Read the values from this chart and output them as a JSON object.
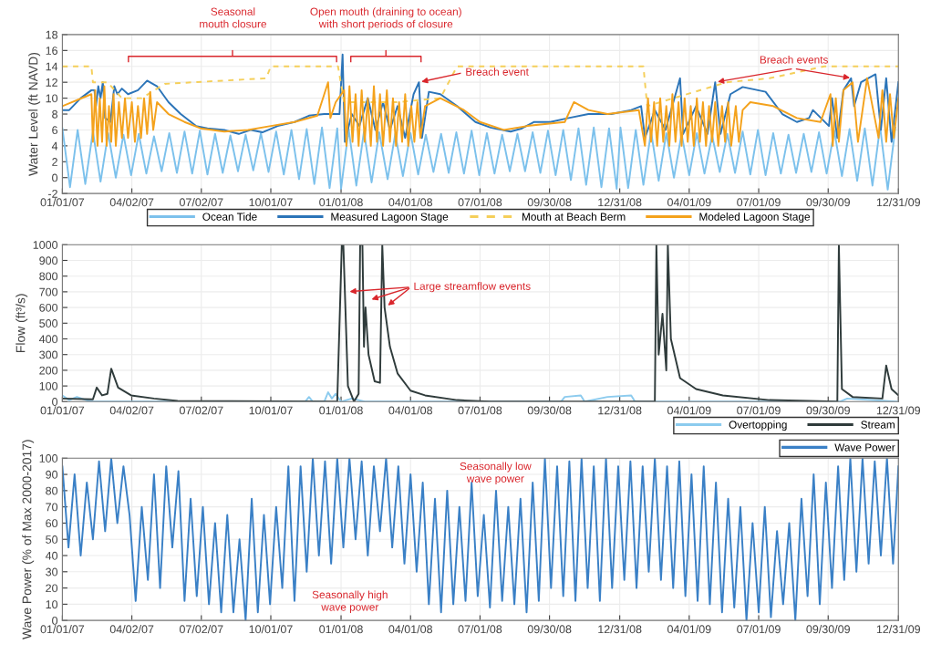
{
  "chart_data": [
    {
      "type": "line",
      "ylabel": "Water Level (ft NAVD)",
      "xlim": [
        "2007-01-01",
        "2009-12-31"
      ],
      "ylim": [
        -2,
        18
      ],
      "yticks": [
        -2,
        0,
        2,
        4,
        6,
        8,
        10,
        12,
        14,
        16,
        18
      ],
      "xticks": [
        {
          "value": "2007-01-01",
          "label": "01/01/07"
        },
        {
          "value": "2007-04-02",
          "label": "04/02/07"
        },
        {
          "value": "2007-07-02",
          "label": "07/02/07"
        },
        {
          "value": "2007-10-01",
          "label": "10/01/07"
        },
        {
          "value": "2008-01-01",
          "label": "01/01/08"
        },
        {
          "value": "2008-04-01",
          "label": "04/01/08"
        },
        {
          "value": "2008-07-01",
          "label": "07/01/08"
        },
        {
          "value": "2008-09-30",
          "label": "09/30/08"
        },
        {
          "value": "2008-12-31",
          "label": "12/31/08"
        },
        {
          "value": "2009-04-01",
          "label": "04/01/09"
        },
        {
          "value": "2009-07-01",
          "label": "07/01/09"
        },
        {
          "value": "2009-09-30",
          "label": "09/30/09"
        },
        {
          "value": "2009-12-31",
          "label": "12/31/09"
        }
      ],
      "grid": true,
      "legend": "bottom",
      "annotations": [
        "Seasonal\nmouth closure",
        "Open mouth (draining to ocean)\nwith short periods of closure",
        {
          "text": "Breach event",
          "x": "2008-04-12",
          "y": 12
        },
        {
          "text": "Breach events",
          "x": "2009-05-05",
          "y": 12
        }
      ],
      "series": [
        {
          "name": "Ocean Tide",
          "color": "#7cc1ec",
          "x": [
            "2007-01-01",
            "2007-01-11",
            "2007-01-21",
            "2007-01-31",
            "2007-02-10",
            "2007-02-20",
            "2007-03-02",
            "2007-03-12",
            "2007-03-22",
            "2007-04-01",
            "2007-04-11",
            "2007-04-21",
            "2007-05-01",
            "2007-05-11",
            "2007-05-21",
            "2007-05-31",
            "2007-06-10",
            "2007-06-20",
            "2007-06-30",
            "2007-07-10",
            "2007-07-20",
            "2007-07-30",
            "2007-08-09",
            "2007-08-19",
            "2007-08-29",
            "2007-09-08",
            "2007-09-18",
            "2007-09-28",
            "2007-10-08",
            "2007-10-18",
            "2007-10-28",
            "2007-11-07",
            "2007-11-17",
            "2007-11-27",
            "2007-12-07",
            "2007-12-17",
            "2007-12-27",
            "2008-01-01",
            "2008-01-11",
            "2008-01-21",
            "2008-01-31",
            "2008-02-10",
            "2008-02-20",
            "2008-03-02",
            "2008-03-12",
            "2008-03-22",
            "2008-04-01",
            "2008-04-11",
            "2008-04-21",
            "2008-05-01",
            "2008-05-11",
            "2008-05-21",
            "2008-05-31",
            "2008-06-10",
            "2008-06-20",
            "2008-06-30",
            "2008-07-10",
            "2008-07-20",
            "2008-07-30",
            "2008-08-09",
            "2008-08-19",
            "2008-08-29",
            "2008-09-08",
            "2008-09-18",
            "2008-09-28",
            "2008-10-08",
            "2008-10-18",
            "2008-10-28",
            "2008-11-07",
            "2008-11-17",
            "2008-11-27",
            "2008-12-07",
            "2008-12-17",
            "2008-12-27",
            "2009-01-01",
            "2009-01-11",
            "2009-01-21",
            "2009-01-31",
            "2009-02-10",
            "2009-02-20",
            "2009-03-02",
            "2009-03-12",
            "2009-03-22",
            "2009-04-01",
            "2009-04-11",
            "2009-04-21",
            "2009-05-01",
            "2009-05-11",
            "2009-05-21",
            "2009-05-31",
            "2009-06-10",
            "2009-06-20",
            "2009-06-30",
            "2009-07-10",
            "2009-07-20",
            "2009-07-30",
            "2009-08-09",
            "2009-08-19",
            "2009-08-29",
            "2009-09-08",
            "2009-09-18",
            "2009-09-28",
            "2009-10-08",
            "2009-10-18",
            "2009-10-28",
            "2009-11-07",
            "2009-11-17",
            "2009-11-27",
            "2009-12-07",
            "2009-12-17",
            "2009-12-27"
          ],
          "values": [
            6.2,
            -1.2,
            6.0,
            -0.8,
            5.8,
            -0.5,
            5.6,
            0.0,
            5.4,
            0.3,
            5.5,
            0.5,
            5.2,
            0.8,
            5.6,
            0.6,
            5.8,
            0.5,
            5.9,
            0.4,
            5.5,
            0.6,
            5.3,
            0.8,
            5.4,
            0.9,
            5.6,
            0.7,
            5.8,
            0.4,
            6.0,
            -0.2,
            6.1,
            -0.8,
            6.3,
            -1.3,
            6.2,
            -1.4,
            6.1,
            -1.0,
            5.8,
            -0.6,
            5.7,
            -0.2,
            5.5,
            0.2,
            5.6,
            0.4,
            5.4,
            0.7,
            5.5,
            0.6,
            5.7,
            0.5,
            5.9,
            0.3,
            5.6,
            0.5,
            5.4,
            0.8,
            5.5,
            0.8,
            5.7,
            0.6,
            5.9,
            0.3,
            6.0,
            -0.3,
            6.2,
            -0.9,
            6.3,
            -1.2,
            6.2,
            -1.4,
            6.3,
            -1.3,
            6.0,
            -0.9,
            5.8,
            -0.4,
            5.6,
            0.0,
            5.5,
            0.3,
            5.6,
            0.5,
            5.3,
            0.7,
            5.5,
            0.6,
            5.8,
            0.4,
            6.0,
            0.3,
            5.6,
            0.5,
            5.4,
            0.6,
            5.5,
            0.7,
            5.7,
            0.5,
            5.9,
            0.2,
            6.1,
            -0.4,
            6.2,
            -1.0,
            6.4,
            -1.5,
            6.3
          ]
        },
        {
          "name": "Measured Lagoon Stage",
          "color": "#2b74b8",
          "x": [
            "2007-01-01",
            "2007-01-10",
            "2007-01-25",
            "2007-02-08",
            "2007-02-12",
            "2007-02-14",
            "2007-02-17",
            "2007-02-20",
            "2007-02-23",
            "2007-02-26",
            "2007-03-05",
            "2007-03-10",
            "2007-03-14",
            "2007-03-20",
            "2007-03-28",
            "2007-04-10",
            "2007-04-22",
            "2007-05-05",
            "2007-05-20",
            "2007-06-05",
            "2007-06-25",
            "2007-07-10",
            "2007-08-01",
            "2007-08-20",
            "2007-09-05",
            "2007-09-20",
            "2007-10-10",
            "2007-11-01",
            "2007-11-20",
            "2007-12-10",
            "2007-12-30",
            "2008-01-03",
            "2008-01-06",
            "2008-01-15",
            "2008-01-25",
            "2008-02-05",
            "2008-02-15",
            "2008-02-25",
            "2008-03-05",
            "2008-03-15",
            "2008-03-25",
            "2008-04-05",
            "2008-04-12",
            "2008-04-16",
            "2008-04-25",
            "2008-05-10",
            "2008-06-01",
            "2008-06-25",
            "2008-07-15",
            "2008-08-10",
            "2008-08-25",
            "2008-09-10",
            "2008-10-01",
            "2008-10-25",
            "2008-11-20",
            "2008-12-20",
            "2009-01-15",
            "2009-01-28",
            "2009-02-02",
            "2009-02-15",
            "2009-03-01",
            "2009-03-20",
            "2009-03-24",
            "2009-04-10",
            "2009-04-25",
            "2009-05-05",
            "2009-05-12",
            "2009-05-25",
            "2009-06-10",
            "2009-07-10",
            "2009-08-01",
            "2009-08-20",
            "2009-09-05",
            "2009-09-10",
            "2009-10-01",
            "2009-10-05",
            "2009-10-12",
            "2009-10-20",
            "2009-10-30",
            "2009-11-03",
            "2009-11-12",
            "2009-12-01",
            "2009-12-08",
            "2009-12-15",
            "2009-12-22",
            "2009-12-31"
          ],
          "values": [
            8.5,
            8.5,
            10.0,
            11.0,
            11.0,
            9.0,
            11.5,
            10.0,
            12.0,
            7.5,
            7.0,
            11.5,
            10.5,
            11.2,
            10.5,
            11.0,
            12.2,
            11.5,
            9.5,
            8.0,
            6.5,
            6.2,
            6.0,
            5.5,
            6.0,
            5.7,
            6.5,
            7.0,
            7.8,
            8.0,
            8.0,
            15.5,
            4.5,
            8.0,
            6.5,
            10.0,
            6.0,
            9.5,
            6.0,
            9.0,
            5.0,
            10.5,
            12.0,
            5.0,
            10.8,
            10.5,
            9.0,
            7.0,
            6.3,
            5.8,
            6.2,
            7.0,
            7.0,
            7.5,
            8.0,
            8.0,
            8.5,
            9.0,
            5.0,
            8.5,
            6.0,
            12.5,
            5.5,
            9.0,
            5.5,
            12.0,
            5.5,
            10.5,
            11.4,
            10.8,
            8.0,
            7.0,
            7.5,
            8.5,
            6.5,
            10.0,
            5.0,
            11.0,
            12.5,
            9.0,
            12.0,
            13.0,
            6.0,
            12.5,
            4.5,
            12.0
          ]
        },
        {
          "name": "Mouth at Beach Berm",
          "color": "#f5cf5a",
          "line_style": "dashed",
          "x": [
            "2007-01-01",
            "2007-02-08",
            "2007-02-10",
            "2007-03-01",
            "2007-03-20",
            "2007-04-15",
            "2007-05-15",
            "2007-09-25",
            "2007-10-01",
            "2007-12-28",
            "2008-01-05",
            "2008-03-15",
            "2008-05-10",
            "2008-06-01",
            "2009-01-31",
            "2009-02-05",
            "2009-05-20",
            "2009-07-15",
            "2009-09-25",
            "2009-12-31"
          ],
          "values": [
            14.0,
            14.0,
            12.0,
            12.0,
            10.0,
            10.0,
            11.8,
            12.5,
            14.0,
            14.0,
            9.5,
            9.5,
            10.0,
            14.0,
            14.0,
            9.0,
            12.0,
            12.5,
            14.0,
            14.0
          ]
        },
        {
          "name": "Modeled Lagoon Stage",
          "color": "#f4a21c",
          "x": [
            "2007-01-01",
            "2007-02-08",
            "2007-02-10",
            "2007-02-13",
            "2007-02-16",
            "2007-02-19",
            "2007-02-22",
            "2007-02-25",
            "2007-02-28",
            "2007-03-03",
            "2007-03-06",
            "2007-03-09",
            "2007-03-12",
            "2007-03-16",
            "2007-03-20",
            "2007-03-24",
            "2007-03-28",
            "2007-04-02",
            "2007-04-06",
            "2007-04-10",
            "2007-04-14",
            "2007-04-18",
            "2007-04-22",
            "2007-04-26",
            "2007-04-30",
            "2007-05-05",
            "2007-05-20",
            "2007-06-10",
            "2007-07-01",
            "2007-08-01",
            "2007-09-01",
            "2007-10-01",
            "2007-11-01",
            "2007-12-01",
            "2007-12-15",
            "2007-12-18",
            "2007-12-25",
            "2008-01-05",
            "2008-01-08",
            "2008-01-12",
            "2008-01-16",
            "2008-01-20",
            "2008-01-24",
            "2008-01-28",
            "2008-02-01",
            "2008-02-05",
            "2008-02-09",
            "2008-02-13",
            "2008-02-17",
            "2008-02-21",
            "2008-02-25",
            "2008-03-01",
            "2008-03-05",
            "2008-03-09",
            "2008-03-13",
            "2008-03-17",
            "2008-03-21",
            "2008-03-25",
            "2008-03-29",
            "2008-04-02",
            "2008-04-06",
            "2008-04-10",
            "2008-04-14",
            "2008-04-20",
            "2008-05-10",
            "2008-06-10",
            "2008-07-01",
            "2008-08-01",
            "2008-09-01",
            "2008-10-20",
            "2008-11-01",
            "2008-11-20",
            "2008-12-15",
            "2009-01-25",
            "2009-02-02",
            "2009-02-06",
            "2009-02-10",
            "2009-02-14",
            "2009-02-18",
            "2009-02-22",
            "2009-02-26",
            "2009-03-02",
            "2009-03-06",
            "2009-03-10",
            "2009-03-14",
            "2009-03-18",
            "2009-03-22",
            "2009-03-26",
            "2009-03-30",
            "2009-04-03",
            "2009-04-07",
            "2009-04-11",
            "2009-04-15",
            "2009-04-19",
            "2009-04-23",
            "2009-04-27",
            "2009-05-01",
            "2009-05-05",
            "2009-05-09",
            "2009-05-14",
            "2009-05-18",
            "2009-05-22",
            "2009-05-26",
            "2009-06-01",
            "2009-06-05",
            "2009-06-10",
            "2009-06-20",
            "2009-07-20",
            "2009-08-20",
            "2009-09-20",
            "2009-10-03",
            "2009-10-06",
            "2009-10-10",
            "2009-10-14",
            "2009-10-20",
            "2009-11-01",
            "2009-11-08",
            "2009-11-20",
            "2009-12-05",
            "2009-12-10",
            "2009-12-15",
            "2009-12-20",
            "2009-12-25",
            "2009-12-31"
          ],
          "values": [
            9.0,
            10.5,
            4.5,
            11.0,
            4.0,
            10.0,
            4.5,
            11.5,
            4.0,
            9.0,
            4.5,
            10.5,
            4.0,
            9.5,
            5.0,
            10.0,
            5.0,
            9.5,
            4.5,
            9.0,
            5.0,
            10.0,
            5.5,
            10.8,
            6.0,
            9.5,
            8.0,
            7.0,
            6.2,
            5.8,
            6.0,
            6.5,
            7.0,
            7.8,
            12.0,
            7.5,
            9.5,
            11.0,
            4.0,
            11.5,
            4.5,
            10.5,
            4.0,
            11.0,
            4.5,
            10.0,
            4.0,
            11.5,
            4.5,
            10.5,
            4.0,
            11.0,
            4.5,
            10.0,
            4.0,
            9.5,
            4.5,
            10.5,
            4.0,
            9.0,
            4.5,
            9.5,
            5.0,
            9.0,
            10.0,
            8.5,
            7.0,
            6.0,
            6.5,
            7.0,
            9.5,
            8.5,
            8.0,
            8.5,
            4.0,
            10.0,
            4.5,
            9.5,
            4.0,
            10.0,
            4.5,
            9.0,
            4.0,
            10.5,
            4.5,
            9.5,
            4.0,
            10.0,
            4.5,
            9.0,
            4.0,
            10.0,
            4.5,
            9.5,
            4.0,
            9.0,
            4.5,
            9.5,
            4.0,
            9.0,
            4.5,
            9.5,
            4.0,
            9.0,
            4.5,
            8.5,
            9.5,
            9.0,
            7.5,
            7.0,
            10.5,
            4.0,
            10.0,
            4.5,
            11.0,
            12.0,
            4.5,
            12.5,
            5.0,
            11.0,
            4.5,
            10.5,
            5.0,
            10.0
          ]
        }
      ]
    },
    {
      "type": "line",
      "ylabel": "Flow (ft³/s)",
      "xlim": [
        "2007-01-01",
        "2009-12-31"
      ],
      "ylim": [
        0,
        1000
      ],
      "yticks": [
        0,
        100,
        200,
        300,
        400,
        500,
        600,
        700,
        800,
        900,
        1000
      ],
      "xticks": [
        {
          "value": "2007-01-01",
          "label": "01/01/07"
        },
        {
          "value": "2007-04-02",
          "label": "04/02/07"
        },
        {
          "value": "2007-07-02",
          "label": "07/02/07"
        },
        {
          "value": "2007-10-01",
          "label": "10/01/07"
        },
        {
          "value": "2008-01-01",
          "label": "01/01/08"
        },
        {
          "value": "2008-04-01",
          "label": "04/01/08"
        },
        {
          "value": "2008-07-01",
          "label": "07/01/08"
        },
        {
          "value": "2008-09-30",
          "label": "09/30/08"
        },
        {
          "value": "2008-12-31",
          "label": "12/31/08"
        },
        {
          "value": "2009-04-01",
          "label": "04/01/09"
        },
        {
          "value": "2009-07-01",
          "label": "07/01/09"
        },
        {
          "value": "2009-09-30",
          "label": "09/30/09"
        },
        {
          "value": "2009-12-31",
          "label": "12/31/09"
        }
      ],
      "grid": true,
      "legend": "bottom right",
      "annotations": [
        {
          "text": "Large streamflow events",
          "x": "2008-01-09",
          "y": 700
        }
      ],
      "series": [
        {
          "name": "Overtopping",
          "color": "#8ccbee",
          "x": [
            "2007-01-01",
            "2007-01-10",
            "2007-01-20",
            "2007-02-01",
            "2007-02-10",
            "2007-11-15",
            "2007-11-20",
            "2007-11-25",
            "2007-12-10",
            "2007-12-15",
            "2007-12-20",
            "2007-12-25",
            "2008-01-01",
            "2008-01-15",
            "2008-02-01",
            "2008-10-15",
            "2008-10-20",
            "2008-11-10",
            "2008-11-15",
            "2008-12-15",
            "2009-01-15",
            "2009-01-20",
            "2009-10-15",
            "2009-10-25",
            "2009-12-31"
          ],
          "values": [
            40,
            10,
            30,
            10,
            0,
            0,
            30,
            0,
            0,
            60,
            20,
            50,
            0,
            20,
            0,
            0,
            30,
            40,
            0,
            30,
            40,
            0,
            0,
            20,
            0
          ]
        },
        {
          "name": "Stream",
          "color": "#2f3b3b",
          "x": [
            "2007-01-01",
            "2007-02-10",
            "2007-02-15",
            "2007-02-22",
            "2007-03-01",
            "2007-03-06",
            "2007-03-15",
            "2007-04-01",
            "2007-05-01",
            "2007-06-01",
            "2007-12-27",
            "2008-01-02",
            "2008-01-04",
            "2008-01-10",
            "2008-01-18",
            "2008-01-24",
            "2008-01-26",
            "2008-01-29",
            "2008-01-31",
            "2008-02-02",
            "2008-02-06",
            "2008-02-14",
            "2008-02-21",
            "2008-02-24",
            "2008-02-27",
            "2008-03-05",
            "2008-03-15",
            "2008-04-01",
            "2008-04-20",
            "2008-06-01",
            "2008-07-15",
            "2009-02-15",
            "2009-02-17",
            "2009-02-20",
            "2009-02-25",
            "2009-03-02",
            "2009-03-04",
            "2009-03-08",
            "2009-03-20",
            "2009-04-10",
            "2009-05-15",
            "2009-07-15",
            "2009-10-12",
            "2009-10-14",
            "2009-10-18",
            "2009-11-01",
            "2009-12-10",
            "2009-12-15",
            "2009-12-22",
            "2009-12-31"
          ],
          "values": [
            20,
            15,
            90,
            40,
            50,
            210,
            90,
            40,
            20,
            5,
            0,
            1000,
            1000,
            100,
            0,
            50,
            1000,
            1000,
            350,
            600,
            300,
            130,
            120,
            1000,
            600,
            350,
            180,
            70,
            40,
            10,
            0,
            0,
            1000,
            300,
            560,
            200,
            1000,
            400,
            150,
            80,
            40,
            10,
            0,
            1000,
            80,
            30,
            20,
            230,
            80,
            40
          ]
        }
      ]
    },
    {
      "type": "line",
      "ylabel": "Wave Power (% of Max 2000-2017)",
      "xlim": [
        "2007-01-01",
        "2009-12-31"
      ],
      "ylim": [
        0,
        100
      ],
      "yticks": [
        0,
        10,
        20,
        30,
        40,
        50,
        60,
        70,
        80,
        90,
        100
      ],
      "xticks": [
        {
          "value": "2007-01-01",
          "label": "01/01/07"
        },
        {
          "value": "2007-04-02",
          "label": "04/02/07"
        },
        {
          "value": "2007-07-02",
          "label": "07/02/07"
        },
        {
          "value": "2007-10-01",
          "label": "10/01/07"
        },
        {
          "value": "2008-01-01",
          "label": "01/01/08"
        },
        {
          "value": "2008-04-01",
          "label": "04/01/08"
        },
        {
          "value": "2008-07-01",
          "label": "07/01/08"
        },
        {
          "value": "2008-09-30",
          "label": "09/30/08"
        },
        {
          "value": "2008-12-31",
          "label": "12/31/08"
        },
        {
          "value": "2009-04-01",
          "label": "04/01/09"
        },
        {
          "value": "2009-07-01",
          "label": "07/01/09"
        },
        {
          "value": "2009-09-30",
          "label": "09/30/09"
        },
        {
          "value": "2009-12-31",
          "label": "12/31/09"
        }
      ],
      "grid": true,
      "legend": "top right",
      "annotations": [
        "Seasonally low\nwave power",
        "Seasonally high\nwave power"
      ],
      "series": [
        {
          "name": "Wave Power",
          "color": "#3a80c6",
          "x": [
            "2007-01-01",
            "2007-01-09",
            "2007-01-17",
            "2007-01-25",
            "2007-02-02",
            "2007-02-10",
            "2007-02-18",
            "2007-02-26",
            "2007-03-06",
            "2007-03-14",
            "2007-03-22",
            "2007-03-30",
            "2007-04-07",
            "2007-04-15",
            "2007-04-23",
            "2007-05-01",
            "2007-05-09",
            "2007-05-17",
            "2007-05-25",
            "2007-06-02",
            "2007-06-10",
            "2007-06-18",
            "2007-06-26",
            "2007-07-04",
            "2007-07-12",
            "2007-07-20",
            "2007-07-28",
            "2007-08-05",
            "2007-08-13",
            "2007-08-21",
            "2007-08-29",
            "2007-09-06",
            "2007-09-14",
            "2007-09-22",
            "2007-09-30",
            "2007-10-08",
            "2007-10-16",
            "2007-10-24",
            "2007-11-01",
            "2007-11-09",
            "2007-11-17",
            "2007-11-25",
            "2007-12-03",
            "2007-12-11",
            "2007-12-19",
            "2007-12-27",
            "2008-01-04",
            "2008-01-12",
            "2008-01-20",
            "2008-01-28",
            "2008-02-05",
            "2008-02-13",
            "2008-02-21",
            "2008-02-29",
            "2008-03-08",
            "2008-03-16",
            "2008-03-24",
            "2008-04-01",
            "2008-04-09",
            "2008-04-17",
            "2008-04-25",
            "2008-05-03",
            "2008-05-11",
            "2008-05-19",
            "2008-05-27",
            "2008-06-04",
            "2008-06-12",
            "2008-06-20",
            "2008-06-28",
            "2008-07-06",
            "2008-07-14",
            "2008-07-22",
            "2008-07-30",
            "2008-08-07",
            "2008-08-15",
            "2008-08-23",
            "2008-08-31",
            "2008-09-08",
            "2008-09-16",
            "2008-09-24",
            "2008-10-02",
            "2008-10-10",
            "2008-10-18",
            "2008-10-26",
            "2008-11-03",
            "2008-11-11",
            "2008-11-19",
            "2008-11-27",
            "2008-12-05",
            "2008-12-13",
            "2008-12-21",
            "2008-12-29",
            "2009-01-06",
            "2009-01-14",
            "2009-01-22",
            "2009-01-30",
            "2009-02-07",
            "2009-02-15",
            "2009-02-23",
            "2009-03-03",
            "2009-03-11",
            "2009-03-19",
            "2009-03-27",
            "2009-04-04",
            "2009-04-12",
            "2009-04-20",
            "2009-04-28",
            "2009-05-06",
            "2009-05-14",
            "2009-05-22",
            "2009-05-30",
            "2009-06-07",
            "2009-06-15",
            "2009-06-23",
            "2009-07-01",
            "2009-07-09",
            "2009-07-17",
            "2009-07-25",
            "2009-08-02",
            "2009-08-10",
            "2009-08-18",
            "2009-08-26",
            "2009-09-03",
            "2009-09-11",
            "2009-09-19",
            "2009-09-27",
            "2009-10-05",
            "2009-10-13",
            "2009-10-21",
            "2009-10-29",
            "2009-11-06",
            "2009-11-14",
            "2009-11-22",
            "2009-11-30",
            "2009-12-08",
            "2009-12-16",
            "2009-12-24",
            "2009-12-31"
          ],
          "values": [
            95,
            45,
            90,
            40,
            85,
            50,
            98,
            55,
            100,
            60,
            95,
            65,
            12,
            70,
            25,
            90,
            20,
            95,
            45,
            92,
            12,
            75,
            15,
            70,
            10,
            60,
            5,
            65,
            5,
            50,
            0,
            75,
            5,
            65,
            10,
            70,
            20,
            95,
            12,
            95,
            30,
            100,
            40,
            98,
            35,
            100,
            45,
            100,
            50,
            98,
            40,
            95,
            55,
            100,
            45,
            95,
            35,
            90,
            30,
            85,
            10,
            75,
            5,
            80,
            10,
            70,
            12,
            85,
            15,
            65,
            8,
            80,
            12,
            70,
            10,
            75,
            5,
            85,
            12,
            100,
            20,
            95,
            15,
            98,
            12,
            100,
            20,
            95,
            12,
            100,
            20,
            95,
            25,
            98,
            20,
            95,
            30,
            100,
            25,
            95,
            20,
            98,
            15,
            90,
            12,
            95,
            10,
            85,
            5,
            75,
            8,
            70,
            0,
            60,
            5,
            70,
            2,
            55,
            10,
            60,
            0,
            75,
            15,
            90,
            10,
            85,
            20,
            95,
            25,
            100,
            30,
            100,
            35,
            98,
            40,
            100,
            35,
            95
          ]
        }
      ]
    }
  ]
}
